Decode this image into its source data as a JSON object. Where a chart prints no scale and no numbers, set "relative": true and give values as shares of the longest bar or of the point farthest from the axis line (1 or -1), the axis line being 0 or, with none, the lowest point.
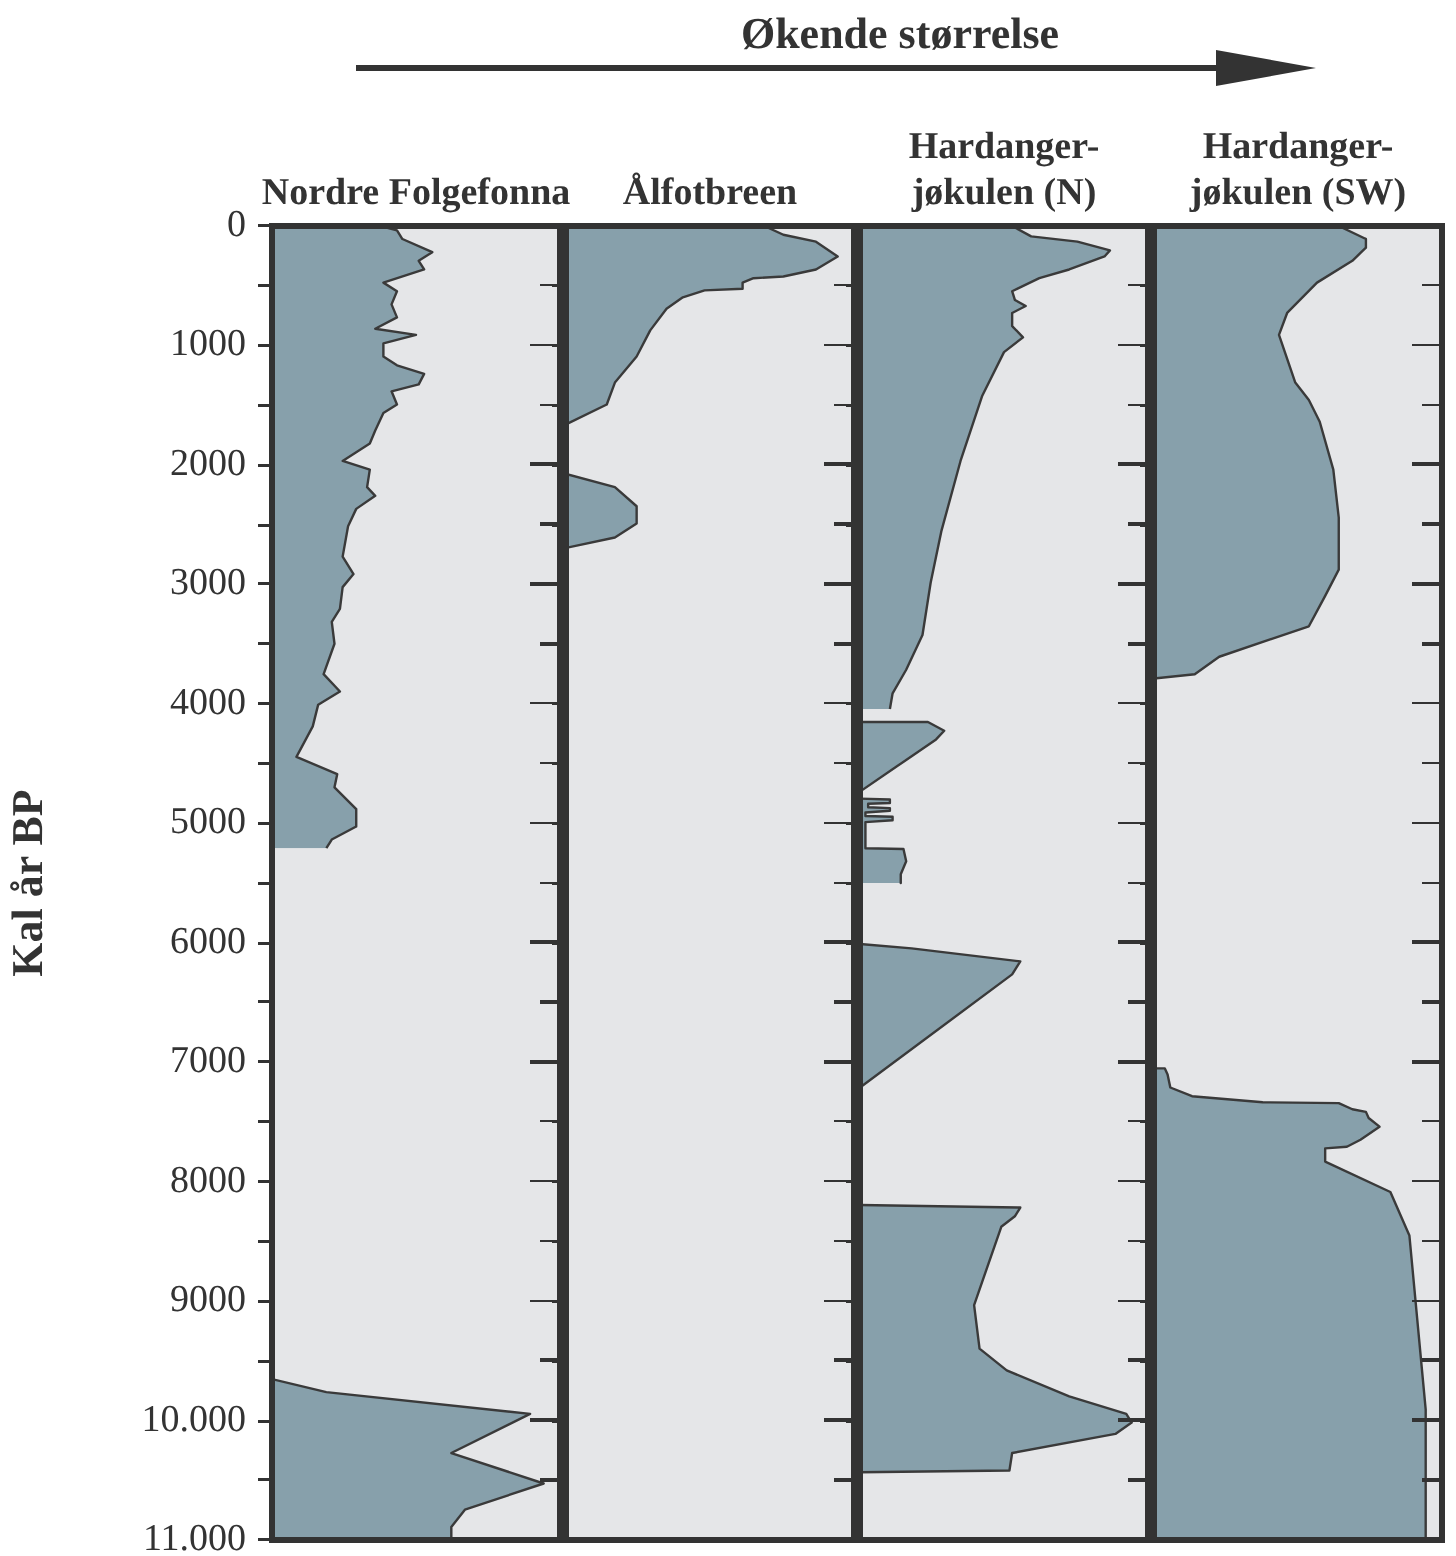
{
  "chart_data": [
    {
      "type": "area",
      "orientation": "horizontal",
      "relative": true,
      "title": "Nordre Folgefonna",
      "ylabel": "Kal år BP",
      "annotations": [
        "Økende størrelse"
      ],
      "tick_labels": "y",
      "ylim": [
        11000,
        0
      ],
      "yticks": [
        0,
        {
          "value": 500,
          "label": null
        },
        1000,
        {
          "value": 1500,
          "label": null
        },
        2000,
        {
          "value": 2500,
          "label": null
        },
        3000,
        {
          "value": 3500,
          "label": null
        },
        4000,
        {
          "value": 4500,
          "label": null
        },
        5000,
        {
          "value": 5500,
          "label": null
        },
        6000,
        {
          "value": 6500,
          "label": null
        },
        7000,
        {
          "value": 7500,
          "label": null
        },
        8000,
        {
          "value": 8500,
          "label": null
        },
        9000,
        {
          "value": 9500,
          "label": null
        },
        {
          "value": 10000,
          "label": "10.000"
        },
        {
          "value": 10500,
          "label": null
        },
        {
          "value": 11000,
          "label": "11.000"
        }
      ],
      "x": [
        0,
        36,
        109,
        219,
        291,
        364,
        474,
        546,
        656,
        765,
        860,
        911,
        983,
        1093,
        1166,
        1238,
        1326,
        1384,
        1494,
        1566,
        1712,
        1821,
        1894,
        1967,
        2040,
        2186,
        2259,
        2368,
        2513,
        2768,
        2914,
        3023,
        3205,
        3314,
        3497,
        3752,
        3897,
        4007,
        4189,
        4444,
        4589,
        4699,
        4881,
        5027,
        5136,
        5209,
        7500,
        9653,
        9762,
        9944,
        10272,
        10527,
        10746,
        10891,
        11000
      ],
      "series": [
        {
          "color": "#87a0ab",
          "values": [
            0.4,
            0.46,
            0.48,
            0.59,
            0.54,
            0.56,
            0.41,
            0.46,
            0.44,
            0.46,
            0.38,
            0.53,
            0.41,
            0.41,
            0.46,
            0.56,
            0.54,
            0.44,
            0.46,
            0.41,
            0.38,
            0.36,
            0.31,
            0.26,
            0.36,
            0.35,
            0.38,
            0.31,
            0.28,
            0.26,
            0.3,
            0.26,
            0.25,
            0.22,
            0.23,
            0.19,
            0.25,
            0.17,
            0.15,
            0.09,
            0.24,
            0.23,
            0.31,
            0.31,
            0.22,
            0.2,
            null,
            0,
            0.2,
            0.95,
            0.66,
            1.0,
            0.71,
            0.66,
            0.66
          ]
        }
      ]
    },
    {
      "type": "area",
      "orientation": "horizontal",
      "relative": true,
      "title": "Ålfotbreen",
      "tick_labels": false,
      "ylim": [
        11000,
        0
      ],
      "x": [
        0,
        73,
        131,
        255,
        364,
        423,
        437,
        474,
        525,
        539,
        597,
        692,
        874,
        1093,
        1311,
        1494,
        1661,
        1850,
        2076,
        2186,
        2346,
        2491,
        2608,
        2695
      ],
      "series": [
        {
          "color": "#87a0ab",
          "values": [
            0.73,
            0.8,
            0.92,
            1.0,
            0.92,
            0.8,
            0.69,
            0.65,
            0.65,
            0.51,
            0.43,
            0.37,
            0.31,
            0.26,
            0.18,
            0.15,
            0,
            null,
            0,
            0.18,
            0.26,
            0.26,
            0.18,
            0
          ]
        }
      ]
    },
    {
      "type": "area",
      "orientation": "horizontal",
      "relative": true,
      "title": "Hardanger-jøkulen (N)",
      "tick_labels": false,
      "ylim": [
        11000,
        0
      ],
      "x": [
        0,
        87,
        131,
        204,
        255,
        364,
        437,
        546,
        619,
        670,
        728,
        838,
        932,
        1056,
        1421,
        1967,
        2550,
        2987,
        3424,
        3715,
        3912,
        4043,
        4100,
        4152,
        4152,
        4225,
        4298,
        4517,
        4735,
        4765,
        4794,
        4801,
        4830,
        4837,
        4866,
        4873,
        4895,
        4910,
        4939,
        4946,
        4975,
        4990,
        5209,
        5216,
        5318,
        5427,
        5500,
        5750,
        6010,
        6047,
        6156,
        6265,
        7212,
        7700,
        8196,
        8217,
        8290,
        8378,
        9033,
        9398,
        9580,
        9798,
        9944,
        10017,
        10112,
        10272,
        10418,
        10433
      ],
      "series": [
        {
          "color": "#87a0ab",
          "values": [
            0.56,
            0.63,
            0.8,
            0.92,
            0.9,
            0.77,
            0.66,
            0.56,
            0.57,
            0.61,
            0.56,
            0.56,
            0.6,
            0.53,
            0.45,
            0.37,
            0.3,
            0.26,
            0.23,
            0.17,
            0.12,
            0.11,
            null,
            0,
            0.25,
            0.31,
            0.28,
            0.14,
            0,
            null,
            0,
            0.11,
            0.11,
            0.03,
            0.03,
            0.11,
            0.11,
            0.02,
            0.02,
            0.12,
            0.12,
            0.02,
            0.02,
            0.16,
            0.17,
            0.15,
            0.15,
            null,
            0,
            0.19,
            0.59,
            0.56,
            0,
            null,
            0,
            0.59,
            0.57,
            0.52,
            0.42,
            0.44,
            0.54,
            0.77,
            0.98,
            1.0,
            0.94,
            0.56,
            0.55,
            0
          ]
        }
      ]
    },
    {
      "type": "area",
      "orientation": "horizontal",
      "relative": true,
      "title": "Hardanger-jøkulen (SW)",
      "tick_labels": false,
      "ylim": [
        11000,
        0
      ],
      "x": [
        0,
        109,
        182,
        291,
        474,
        728,
        911,
        1311,
        1457,
        1639,
        2040,
        2441,
        2877,
        3096,
        3351,
        3606,
        3752,
        3788,
        5400,
        7052,
        7052,
        7103,
        7212,
        7285,
        7336,
        7343,
        7394,
        7416,
        7467,
        7540,
        7649,
        7708,
        7722,
        7832,
        8087,
        8451,
        9908,
        11000
      ],
      "series": [
        {
          "color": "#87a0ab",
          "values": [
            0.68,
            0.78,
            0.78,
            0.73,
            0.6,
            0.49,
            0.46,
            0.52,
            0.57,
            0.61,
            0.66,
            0.68,
            0.68,
            0.63,
            0.57,
            0.24,
            0.15,
            0,
            null,
            0,
            0.04,
            0.05,
            0.06,
            0.14,
            0.4,
            0.68,
            0.73,
            0.78,
            0.79,
            0.83,
            0.76,
            0.71,
            0.63,
            0.63,
            0.87,
            0.94,
            1.0,
            1.0
          ]
        }
      ]
    }
  ]
}
